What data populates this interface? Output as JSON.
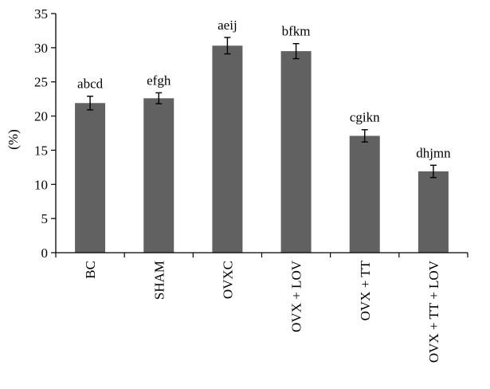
{
  "chart_data": {
    "type": "bar",
    "title": "",
    "xlabel": "",
    "ylabel": "(%)",
    "ylim": [
      0,
      35
    ],
    "yticks": [
      0,
      5,
      10,
      15,
      20,
      25,
      30,
      35
    ],
    "grid": false,
    "legend": "none",
    "bar_color": "#616161",
    "categories": [
      "BC",
      "SHAM",
      "OVXC",
      "OVX + LOV",
      "OVX + TT",
      "OVX + TT + LOV"
    ],
    "values": [
      21.9,
      22.6,
      30.3,
      29.5,
      17.1,
      11.9
    ],
    "errors": [
      1.0,
      0.8,
      1.2,
      1.1,
      0.9,
      0.9
    ],
    "annotations": [
      "abcd",
      "efgh",
      "aeij",
      "bfkm",
      "cgikn",
      "dhjmn"
    ]
  }
}
